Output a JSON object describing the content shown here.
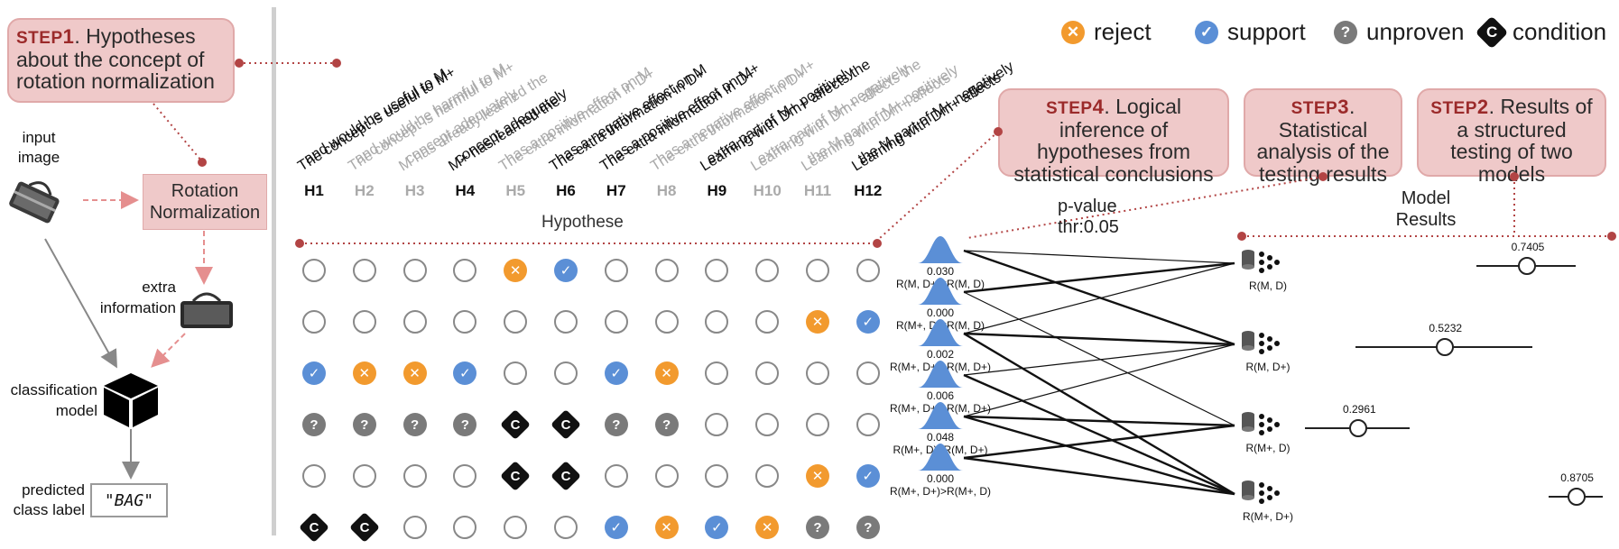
{
  "step1": {
    "word": "STEP",
    "num": "1",
    "title": "Hypotheses about the concept of rotation normalization"
  },
  "step2": {
    "word": "STEP",
    "num": "2",
    "title": "Results of a structured testing of two models"
  },
  "step3": {
    "word": "STEP",
    "num": "3",
    "title": "Statistical analysis of the testing results"
  },
  "step4": {
    "word": "STEP",
    "num": "4",
    "title": "Logical inference of hypotheses from statistical conclusions"
  },
  "pipeline": {
    "input_image": "input image",
    "rotation_norm": "Rotation Normalization",
    "extra_info": "extra information",
    "classification_model": "classification model",
    "predicted_label": "predicted class label",
    "predicted_value": "\"BAG\""
  },
  "legend": [
    {
      "label": "reject",
      "color": "#f29a2e",
      "symbol": "✕"
    },
    {
      "label": "support",
      "color": "#5b8fd6",
      "symbol": "✓"
    },
    {
      "label": "unproven",
      "color": "#7a7a7a",
      "symbol": "?"
    },
    {
      "label": "condition",
      "color": "#111111",
      "symbol": "C"
    }
  ],
  "hypotheses": [
    {
      "id": "H1",
      "active": true,
      "text": [
        "The concept is useful to M+",
        "and would be useful to M"
      ]
    },
    {
      "id": "H2",
      "active": false,
      "text": [
        "The concept is harmful to M+",
        "and would be harmful to M"
      ]
    },
    {
      "id": "H3",
      "active": false,
      "text": [
        "M has already learned the",
        "concept adequately"
      ]
    },
    {
      "id": "H4",
      "active": true,
      "text": [
        "M+ has learned the",
        "concept adequately"
      ]
    },
    {
      "id": "H5",
      "active": false,
      "text": [
        "The extra information in D+",
        "has a positive effect on M"
      ]
    },
    {
      "id": "H6",
      "active": true,
      "text": [
        "The extra information in D+",
        "has a negative effect on M"
      ]
    },
    {
      "id": "H7",
      "active": true,
      "text": [
        "The extra information in D+",
        "has a positive effect on M+"
      ]
    },
    {
      "id": "H8",
      "active": false,
      "text": [
        "The extra information in D+",
        "has a negative effect on M+"
      ]
    },
    {
      "id": "H9",
      "active": true,
      "text": [
        "Learning with Dm+ affects the",
        "extra part of M+ positively"
      ]
    },
    {
      "id": "H10",
      "active": false,
      "text": [
        "Learning with Dm+ affects the",
        "extra part of M+ negatively"
      ]
    },
    {
      "id": "H11",
      "active": false,
      "text": [
        "Learning with Dm+ affects",
        "the M part of M+ positively"
      ]
    },
    {
      "id": "H12",
      "active": true,
      "text": [
        "Learning with Dm+ affects",
        "the M part of M+ negatively"
      ]
    }
  ],
  "hypothese_label": "Hypothese",
  "matrix": [
    [
      "o",
      "o",
      "o",
      "o",
      "x",
      "v",
      "o",
      "o",
      "o",
      "o",
      "o",
      "o"
    ],
    [
      "o",
      "o",
      "o",
      "o",
      "o",
      "o",
      "o",
      "o",
      "o",
      "o",
      "x",
      "v"
    ],
    [
      "v",
      "x",
      "x",
      "v",
      "o",
      "o",
      "v",
      "x",
      "o",
      "o",
      "o",
      "o"
    ],
    [
      "q",
      "q",
      "q",
      "q",
      "c",
      "c",
      "q",
      "q",
      "o",
      "o",
      "o",
      "o"
    ],
    [
      "o",
      "o",
      "o",
      "o",
      "c",
      "c",
      "o",
      "o",
      "o",
      "o",
      "x",
      "v"
    ],
    [
      "c",
      "c",
      "o",
      "o",
      "o",
      "o",
      "v",
      "x",
      "v",
      "x",
      "q",
      "q"
    ]
  ],
  "stats_header": {
    "pvalue": "p-value",
    "thr": "thr:0.05"
  },
  "tests": [
    {
      "p": "0.030",
      "label": "R(M, D+)<R(M, D)"
    },
    {
      "p": "0.000",
      "label": "R(M+, D)<R(M, D)"
    },
    {
      "p": "0.002",
      "label": "R(M+, D+)>R(M, D+)"
    },
    {
      "p": "0.006",
      "label": "R(M+, D+)>R(M, D+)"
    },
    {
      "p": "0.048",
      "label": "R(M+, D)<R(M, D+)"
    },
    {
      "p": "0.000",
      "label": "R(M+, D+)>R(M+, D)"
    }
  ],
  "model_header": {
    "line1": "Model",
    "line2": "Results"
  },
  "models": [
    {
      "label": "R(M, D)",
      "value": "0.7405",
      "mean": 0.7405
    },
    {
      "label": "R(M, D+)",
      "value": "0.5232",
      "mean": 0.5232
    },
    {
      "label": "R(M+, D)",
      "value": "0.2961",
      "mean": 0.2961
    },
    {
      "label": "R(M+, D+)",
      "value": "0.8705",
      "mean": 0.8705
    }
  ]
}
